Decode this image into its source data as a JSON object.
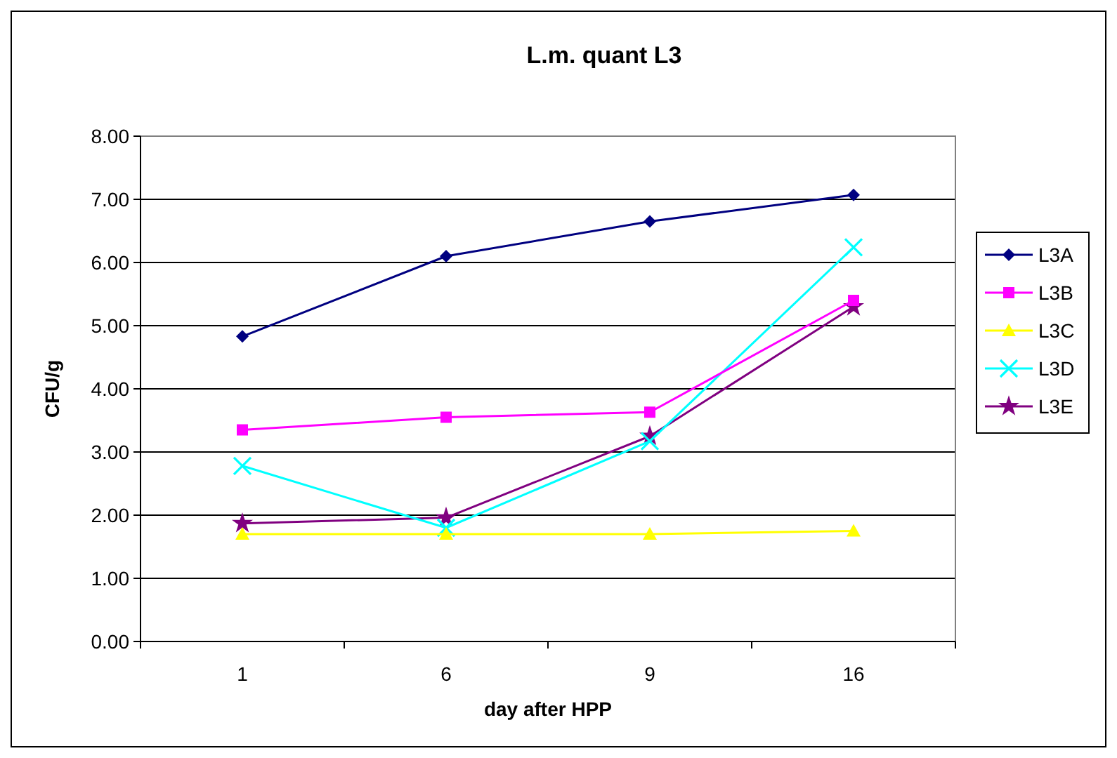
{
  "chart_data": {
    "type": "line",
    "title": "L.m. quant L3",
    "xlabel": "day after HPP",
    "ylabel": "CFU/g",
    "categories": [
      "1",
      "6",
      "9",
      "16"
    ],
    "series": [
      {
        "name": "L3A",
        "color": "#000080",
        "marker": "diamond",
        "values": [
          4.83,
          6.1,
          6.65,
          7.07
        ]
      },
      {
        "name": "L3B",
        "color": "#ff00ff",
        "marker": "square",
        "values": [
          3.35,
          3.55,
          3.63,
          5.4
        ]
      },
      {
        "name": "L3C",
        "color": "#ffff00",
        "marker": "triangle",
        "values": [
          1.7,
          1.7,
          1.7,
          1.75
        ]
      },
      {
        "name": "L3D",
        "color": "#00ffff",
        "marker": "cross",
        "values": [
          2.78,
          1.8,
          3.17,
          6.24
        ]
      },
      {
        "name": "L3E",
        "color": "#800080",
        "marker": "star",
        "values": [
          1.87,
          1.96,
          3.25,
          5.3
        ]
      }
    ],
    "ylim": [
      0,
      8
    ],
    "yticks": [
      {
        "value": 0,
        "label": "0.00"
      },
      {
        "value": 1,
        "label": "1.00"
      },
      {
        "value": 2,
        "label": "2.00"
      },
      {
        "value": 3,
        "label": "3.00"
      },
      {
        "value": 4,
        "label": "4.00"
      },
      {
        "value": 5,
        "label": "5.00"
      },
      {
        "value": 6,
        "label": "6.00"
      },
      {
        "value": 7,
        "label": "7.00"
      },
      {
        "value": 8,
        "label": "8.00"
      }
    ],
    "grid": "y",
    "legend": "right"
  }
}
